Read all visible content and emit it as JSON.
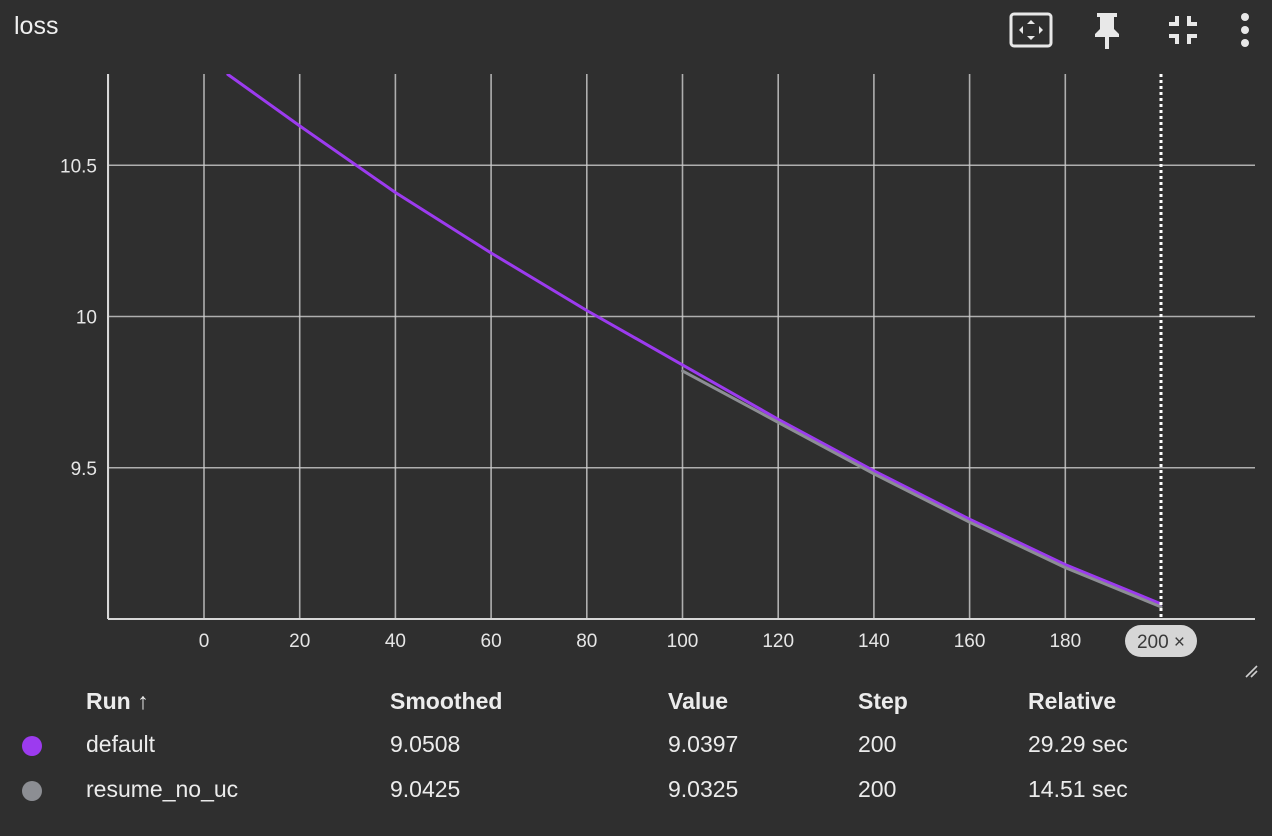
{
  "header": {
    "title": "loss"
  },
  "toolbar": {
    "icons": [
      "fit-to-data-icon",
      "pin-icon",
      "collapse-icon",
      "more-vert-icon"
    ]
  },
  "colors": {
    "default": "#9c3bef",
    "resume_no_uc": "#8c8e93",
    "background": "#2f2f2f",
    "grid": "#cfcfcf"
  },
  "chart_data": {
    "type": "line",
    "title": "loss",
    "xlabel": "",
    "ylabel": "",
    "xlim": [
      -18,
      210
    ],
    "ylim": [
      9.0,
      10.8
    ],
    "x_ticks": [
      "0",
      "20",
      "40",
      "60",
      "80",
      "100",
      "120",
      "140",
      "160",
      "180"
    ],
    "y_ticks": [
      "10.5",
      "10",
      "9.5"
    ],
    "cursor": {
      "step": 200,
      "label": "200 ×"
    },
    "grid": true,
    "series": [
      {
        "name": "default",
        "color": "#9c3bef",
        "x": [
          5,
          20,
          40,
          60,
          80,
          100,
          120,
          140,
          160,
          180,
          200
        ],
        "y": [
          10.8,
          10.63,
          10.41,
          10.21,
          10.02,
          9.84,
          9.66,
          9.49,
          9.33,
          9.18,
          9.05
        ]
      },
      {
        "name": "resume_no_uc",
        "color": "#8c8e93",
        "x": [
          100,
          120,
          140,
          160,
          180,
          200
        ],
        "y": [
          9.82,
          9.65,
          9.48,
          9.32,
          9.17,
          9.04
        ]
      }
    ]
  },
  "table": {
    "headers": {
      "run": "Run ↑",
      "smoothed": "Smoothed",
      "value": "Value",
      "step": "Step",
      "relative": "Relative"
    },
    "rows": [
      {
        "run": "default",
        "color": "#9c3bef",
        "smoothed": "9.0508",
        "value": "9.0397",
        "step": "200",
        "relative": "29.29 sec"
      },
      {
        "run": "resume_no_uc",
        "color": "#8c8e93",
        "smoothed": "9.0425",
        "value": "9.0325",
        "step": "200",
        "relative": "14.51 sec"
      }
    ]
  }
}
